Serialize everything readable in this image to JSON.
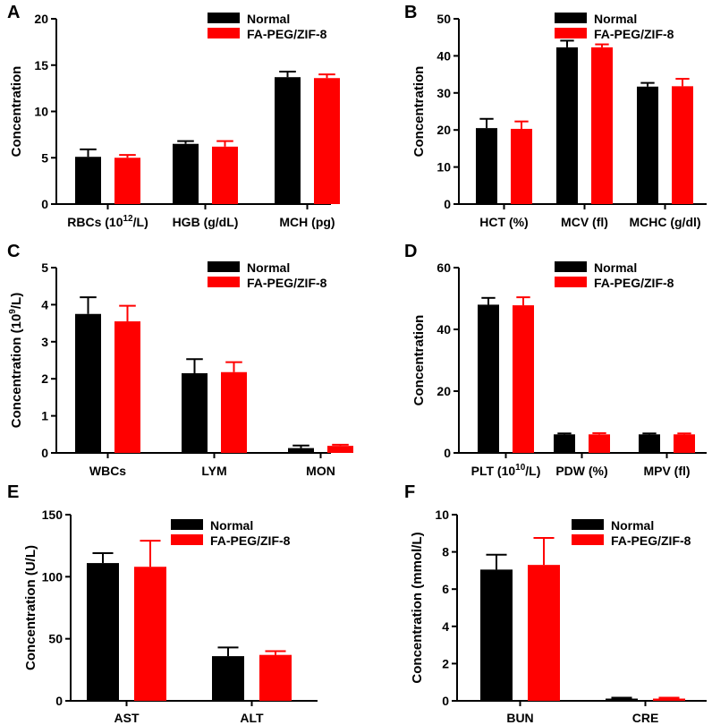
{
  "colors": {
    "normal": "#000000",
    "treated": "#ff0000",
    "axis": "#000000"
  },
  "chart_data": [
    {
      "type": "bar",
      "panel": "A",
      "ylabel": "Concentration",
      "ylabel_super": "",
      "ylabel_tail": "",
      "ylim": [
        0,
        20
      ],
      "yticks": [
        0,
        5,
        10,
        15,
        20
      ],
      "categories": [
        {
          "label": "RBCs (10",
          "sup": "12",
          "tail": "/L)"
        },
        {
          "label": "HGB (g/dL)",
          "sup": "",
          "tail": ""
        },
        {
          "label": "MCH (pg)",
          "sup": "",
          "tail": ""
        }
      ],
      "series": [
        {
          "name": "Normal",
          "values": [
            5.1,
            6.5,
            13.7
          ],
          "errors": [
            0.8,
            0.3,
            0.6
          ]
        },
        {
          "name": "FA-PEG/ZIF-8",
          "values": [
            5.0,
            6.2,
            13.6
          ],
          "errors": [
            0.3,
            0.6,
            0.4
          ]
        }
      ],
      "legend_position": "top-right"
    },
    {
      "type": "bar",
      "panel": "B",
      "ylabel": "Concentration",
      "ylabel_super": "",
      "ylabel_tail": "",
      "ylim": [
        0,
        50
      ],
      "yticks": [
        0,
        10,
        20,
        30,
        40,
        50
      ],
      "categories": [
        {
          "label": "HCT (%)",
          "sup": "",
          "tail": ""
        },
        {
          "label": "MCV (fl)",
          "sup": "",
          "tail": ""
        },
        {
          "label": "MCHC (g/dl)",
          "sup": "",
          "tail": ""
        }
      ],
      "series": [
        {
          "name": "Normal",
          "values": [
            20.5,
            42.3,
            31.7
          ],
          "errors": [
            2.5,
            1.8,
            1.0
          ]
        },
        {
          "name": "FA-PEG/ZIF-8",
          "values": [
            20.3,
            42.3,
            31.8
          ],
          "errors": [
            2.0,
            0.8,
            2.0
          ]
        }
      ],
      "legend_position": "top-right"
    },
    {
      "type": "bar",
      "panel": "C",
      "ylabel": "Concentration (10",
      "ylabel_super": "9",
      "ylabel_tail": "/L)",
      "ylim": [
        0,
        5
      ],
      "yticks": [
        0,
        1,
        2,
        3,
        4,
        5
      ],
      "categories": [
        {
          "label": "WBCs",
          "sup": "",
          "tail": ""
        },
        {
          "label": "LYM",
          "sup": "",
          "tail": ""
        },
        {
          "label": "MON",
          "sup": "",
          "tail": ""
        }
      ],
      "series": [
        {
          "name": "Normal",
          "values": [
            3.75,
            2.15,
            0.13
          ],
          "errors": [
            0.45,
            0.38,
            0.07
          ]
        },
        {
          "name": "FA-PEG/ZIF-8",
          "values": [
            3.55,
            2.18,
            0.19
          ],
          "errors": [
            0.42,
            0.27,
            0.03
          ]
        }
      ],
      "legend_position": "top-right"
    },
    {
      "type": "bar",
      "panel": "D",
      "ylabel": "Concentration",
      "ylabel_super": "",
      "ylabel_tail": "",
      "ylim": [
        0,
        60
      ],
      "yticks": [
        0,
        20,
        40,
        60
      ],
      "categories": [
        {
          "label": "PLT (10",
          "sup": "10",
          "tail": "/L)"
        },
        {
          "label": "PDW (%)",
          "sup": "",
          "tail": ""
        },
        {
          "label": "MPV (fl)",
          "sup": "",
          "tail": ""
        }
      ],
      "series": [
        {
          "name": "Normal",
          "values": [
            48.0,
            6.0,
            6.0
          ],
          "errors": [
            2.2,
            0.3,
            0.3
          ]
        },
        {
          "name": "FA-PEG/ZIF-8",
          "values": [
            47.8,
            6.0,
            6.0
          ],
          "errors": [
            2.6,
            0.4,
            0.3
          ]
        }
      ],
      "legend_position": "top-right"
    },
    {
      "type": "bar",
      "panel": "E",
      "ylabel": "Concentration (U/L)",
      "ylabel_super": "",
      "ylabel_tail": "",
      "ylim": [
        0,
        150
      ],
      "yticks": [
        0,
        50,
        100,
        150
      ],
      "categories": [
        {
          "label": "AST",
          "sup": "",
          "tail": ""
        },
        {
          "label": "ALT",
          "sup": "",
          "tail": ""
        }
      ],
      "series": [
        {
          "name": "Normal",
          "values": [
            111,
            36
          ],
          "errors": [
            8,
            7
          ]
        },
        {
          "name": "FA-PEG/ZIF-8",
          "values": [
            108,
            37
          ],
          "errors": [
            21,
            3
          ]
        }
      ],
      "legend_position": "top-right"
    },
    {
      "type": "bar",
      "panel": "F",
      "ylabel": "Concentration (mmol/L)",
      "ylabel_super": "",
      "ylabel_tail": "",
      "ylim": [
        0,
        10
      ],
      "yticks": [
        0,
        2,
        4,
        6,
        8,
        10
      ],
      "categories": [
        {
          "label": "BUN",
          "sup": "",
          "tail": ""
        },
        {
          "label": "CRE",
          "sup": "",
          "tail": ""
        }
      ],
      "series": [
        {
          "name": "Normal",
          "values": [
            7.05,
            0.12
          ],
          "errors": [
            0.8,
            0.05
          ]
        },
        {
          "name": "FA-PEG/ZIF-8",
          "values": [
            7.3,
            0.12
          ],
          "errors": [
            1.45,
            0.05
          ]
        }
      ],
      "legend_position": "top-right"
    }
  ]
}
